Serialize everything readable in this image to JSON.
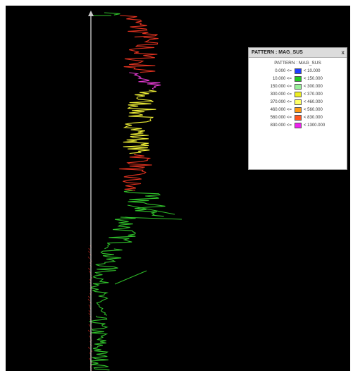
{
  "legend": {
    "title": "PATTERN : MAG_SUS",
    "close_label": "x",
    "subtitle": "PATTERN : MAG_SUS",
    "rows": [
      {
        "low": "0.000 <=",
        "high": "< 10.000",
        "color": "#1f3cff"
      },
      {
        "low": "10.000 <=",
        "high": "< 150.000",
        "color": "#22cc22"
      },
      {
        "low": "150.000 <=",
        "high": "< 300.000",
        "color": "#99ee99"
      },
      {
        "low": "300.000 <=",
        "high": "< 370.000",
        "color": "#eeee22"
      },
      {
        "low": "370.000 <=",
        "high": "< 460.000",
        "color": "#ffff66"
      },
      {
        "low": "460.000 <=",
        "high": "< 560.000",
        "color": "#ff9911"
      },
      {
        "low": "560.000 <=",
        "high": "< 830.000",
        "color": "#ff5522"
      },
      {
        "low": "830.000 <=",
        "high": "< 1300.000",
        "color": "#ee22ee"
      }
    ]
  },
  "colors": {
    "background": "#000000",
    "axis": "#c8c8c8"
  }
}
